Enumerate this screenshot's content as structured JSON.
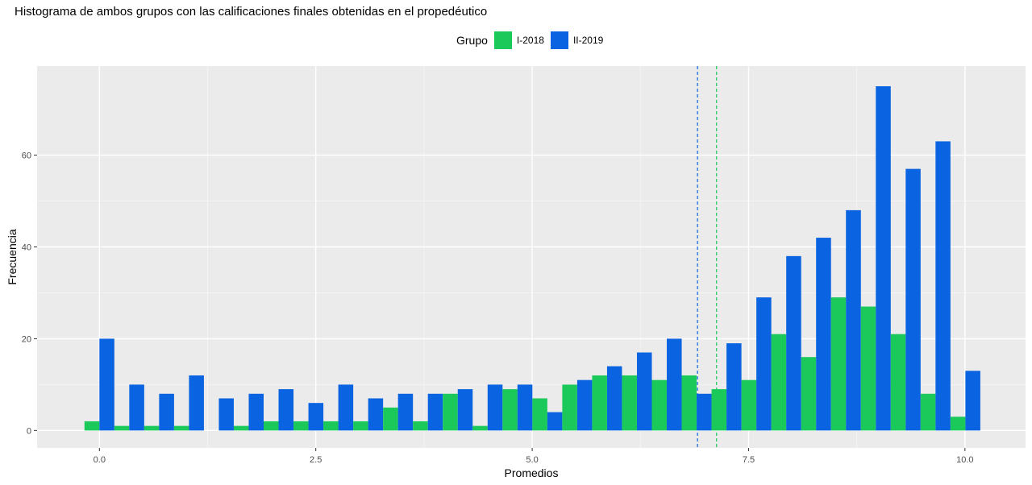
{
  "chart_data": {
    "type": "bar",
    "title": "Histograma de ambos grupos con las calificaciones finales obtenidas en el propedéutico",
    "xlabel": "Promedios",
    "ylabel": "Frecuencia",
    "legend_title": "Grupo",
    "legend_position": "top",
    "xlim": [
      -0.72,
      10.7
    ],
    "ylim": [
      -3.8,
      79.4
    ],
    "x_ticks": [
      0.0,
      2.5,
      5.0,
      7.5,
      10.0
    ],
    "x_tick_labels": [
      "0.0",
      "2.5",
      "5.0",
      "7.5",
      "10.0"
    ],
    "y_ticks": [
      0,
      20,
      40,
      60
    ],
    "y_tick_labels": [
      "0",
      "20",
      "40",
      "60"
    ],
    "grid": true,
    "x": [
      0.0,
      0.345,
      0.69,
      1.035,
      1.38,
      1.725,
      2.07,
      2.415,
      2.76,
      3.105,
      3.45,
      3.795,
      4.14,
      4.485,
      4.83,
      5.175,
      5.52,
      5.865,
      6.21,
      6.555,
      6.9,
      7.245,
      7.59,
      7.935,
      8.28,
      8.625,
      8.97,
      9.315,
      9.66,
      10.005
    ],
    "series": [
      {
        "name": "I-2018",
        "color": "#1bc85a",
        "values": [
          2,
          1,
          1,
          1,
          0,
          1,
          2,
          2,
          2,
          2,
          5,
          2,
          8,
          1,
          9,
          7,
          10,
          12,
          12,
          11,
          12,
          9,
          11,
          21,
          16,
          29,
          27,
          21,
          8,
          3
        ]
      },
      {
        "name": "II-2019",
        "color": "#0a63e0",
        "values": [
          20,
          10,
          8,
          12,
          7,
          8,
          9,
          6,
          10,
          7,
          8,
          8,
          9,
          10,
          10,
          4,
          11,
          14,
          17,
          20,
          8,
          19,
          29,
          38,
          42,
          48,
          75,
          57,
          63,
          13
        ]
      }
    ],
    "vlines": [
      {
        "x": 6.91,
        "color": "#0a63e0",
        "style": "dashed"
      },
      {
        "x": 7.13,
        "color": "#1bc85a",
        "style": "dashed"
      }
    ]
  }
}
